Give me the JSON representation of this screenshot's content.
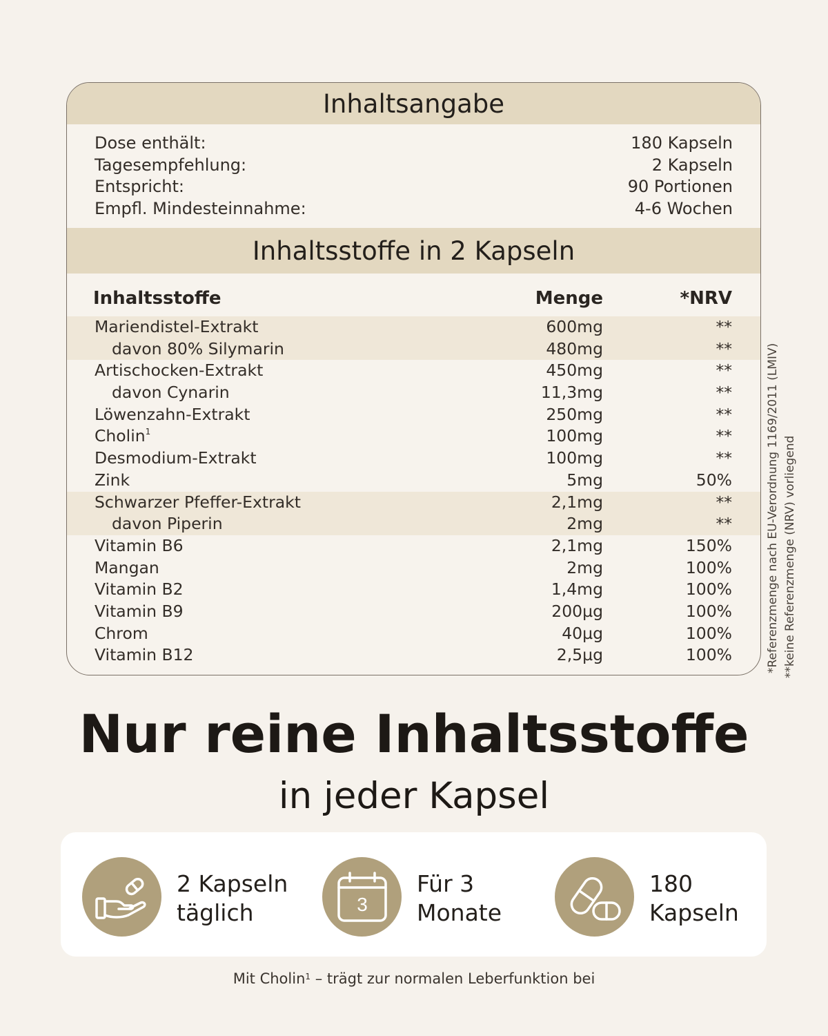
{
  "section1_title": "Inhaltsangabe",
  "info": [
    {
      "label": "Dose enthält:",
      "value": "180 Kapseln"
    },
    {
      "label": "Tagesempfehlung:",
      "value": "2 Kapseln"
    },
    {
      "label": "Entspricht:",
      "value": "90 Portionen"
    },
    {
      "label": "Empfl. Mindesteinnahme:",
      "value": "4-6 Wochen"
    }
  ],
  "section2_title": "Inhaltsstoffe in 2 Kapseln",
  "table_headers": {
    "name": "Inhaltsstoffe",
    "amount": "Menge",
    "nrv": "*NRV"
  },
  "ingredients": [
    {
      "name": "Mariendistel-Extrakt",
      "amount": "600mg",
      "nrv": "**"
    },
    {
      "name": "davon 80% Silymarin",
      "amount": "480mg",
      "nrv": "**"
    },
    {
      "name": "Artischocken-Extrakt",
      "amount": "450mg",
      "nrv": "**"
    },
    {
      "name": "davon Cynarin",
      "amount": "11,3mg",
      "nrv": "**"
    },
    {
      "name": "Löwenzahn-Extrakt",
      "amount": "250mg",
      "nrv": "**"
    },
    {
      "name": "Cholin",
      "sup": "1",
      "amount": "100mg",
      "nrv": "**"
    },
    {
      "name": "Desmodium-Extrakt",
      "amount": "100mg",
      "nrv": "**"
    },
    {
      "name": "Zink",
      "amount": "5mg",
      "nrv": "50%"
    },
    {
      "name": "Schwarzer Pfeffer-Extrakt",
      "amount": "2,1mg",
      "nrv": "**"
    },
    {
      "name": "davon Piperin",
      "amount": "2mg",
      "nrv": "**"
    },
    {
      "name": "Vitamin B6",
      "amount": "2,1mg",
      "nrv": "150%"
    },
    {
      "name": "Mangan",
      "amount": "2mg",
      "nrv": "100%"
    },
    {
      "name": "Vitamin B2",
      "amount": "1,4mg",
      "nrv": "100%"
    },
    {
      "name": "Vitamin B9",
      "amount": "200µg",
      "nrv": "100%"
    },
    {
      "name": "Chrom",
      "amount": "40µg",
      "nrv": "100%"
    },
    {
      "name": "Vitamin B12",
      "amount": "2,5µg",
      "nrv": "100%"
    }
  ],
  "footnote_nrv": "*Referenzmenge nach EU-Verordnung 1169/2011 (LMIV)",
  "footnote_none": "**keine Referenzmenge (NRV) vorliegend",
  "headline": "Nur reine Inhaltsstoffe",
  "subheadline": "in jeder Kapsel",
  "features": [
    {
      "icon": "hand-capsule-icon",
      "line1": "2 Kapseln",
      "line2": "täglich"
    },
    {
      "icon": "calendar-icon",
      "calendar_number": "3",
      "line1": "Für 3",
      "line2": "Monate"
    },
    {
      "icon": "capsules-icon",
      "line1": "180",
      "line2": "Kapseln"
    }
  ],
  "footer": {
    "before": "Mit Cholin",
    "sup": "1",
    "after": " – trägt zur normalen Leberfunktion bei"
  },
  "colors": {
    "band": "#e3d8c0",
    "shade": "#efe7d8",
    "icon_circle": "#b0a07c",
    "background": "#f6f2ec"
  }
}
